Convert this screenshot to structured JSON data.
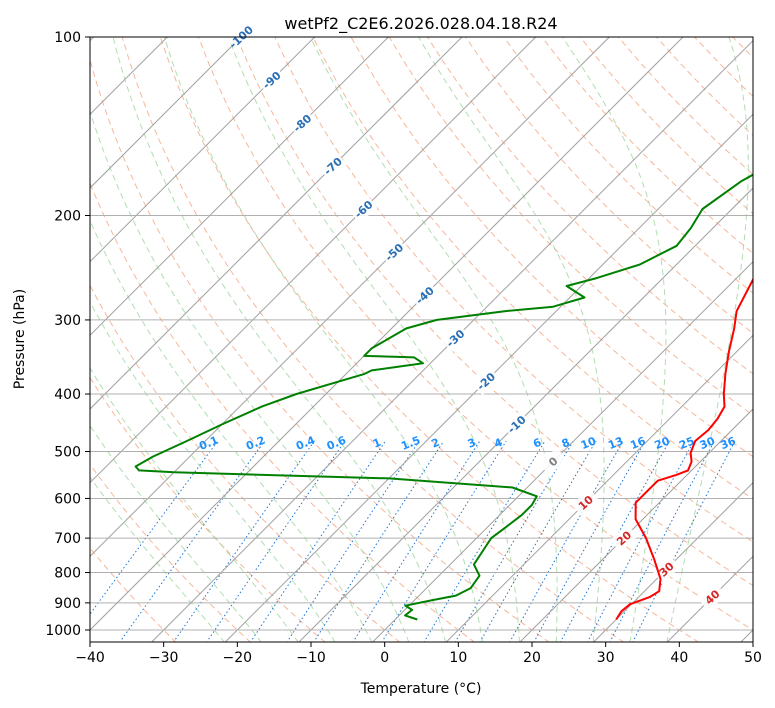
{
  "chart_data": {
    "type": "line",
    "chart_kind": "skew-T log-P diagram",
    "title": "wetPf2_C2E6.2026.028.04.18.R24",
    "xlabel": "Temperature (°C)",
    "ylabel": "Pressure (hPa)",
    "xlim": [
      -40,
      50
    ],
    "ylim": [
      1050,
      100
    ],
    "x_ticks": [
      -40,
      -30,
      -20,
      -10,
      0,
      10,
      20,
      30,
      40,
      50
    ],
    "x_tick_labels": [
      "−40",
      "−30",
      "−20",
      "−10",
      "0",
      "10",
      "20",
      "30",
      "40",
      "50"
    ],
    "y_ticks": [
      100,
      200,
      300,
      400,
      500,
      600,
      700,
      800,
      900,
      1000
    ],
    "y_tick_labels": [
      "100",
      "200",
      "300",
      "400",
      "500",
      "600",
      "700",
      "800",
      "900",
      "1000"
    ],
    "grid": true,
    "isotherm_labels": [
      "-100",
      "-90",
      "-80",
      "-70",
      "-60",
      "-50",
      "-40",
      "-30",
      "-20",
      "-10",
      "0",
      "10",
      "20",
      "30",
      "40"
    ],
    "isotherm_values": [
      -100,
      -90,
      -80,
      -70,
      -60,
      -50,
      -40,
      -30,
      -20,
      -10,
      0,
      10,
      20,
      30,
      40
    ],
    "mixing_ratio_labels": [
      "0.1",
      "0.2",
      "0.4",
      "0.6",
      "1",
      "1.5",
      "2",
      "3",
      "4",
      "6",
      "8",
      "10",
      "13",
      "16",
      "20",
      "25",
      "30",
      "36"
    ],
    "mixing_ratio_values": [
      0.1,
      0.2,
      0.4,
      0.6,
      1,
      1.5,
      2,
      3,
      4,
      6,
      8,
      10,
      13,
      16,
      20,
      25,
      30,
      36
    ],
    "series": [
      {
        "name": "Temperature",
        "color": "#ff0000",
        "points": [
          [
            30,
            960
          ],
          [
            29.6,
            930
          ],
          [
            29.8,
            905
          ],
          [
            31.5,
            880
          ],
          [
            32,
            860
          ],
          [
            30.5,
            820
          ],
          [
            27,
            760
          ],
          [
            23,
            700
          ],
          [
            19,
            650
          ],
          [
            16.8,
            610
          ],
          [
            16.8,
            580
          ],
          [
            16.8,
            560
          ],
          [
            18.5,
            548
          ],
          [
            19.5,
            538
          ],
          [
            18.8,
            520
          ],
          [
            17.5,
            503
          ],
          [
            16.5,
            480
          ],
          [
            16.8,
            460
          ],
          [
            16.5,
            440
          ],
          [
            15.8,
            420
          ],
          [
            14,
            400
          ],
          [
            11.5,
            370
          ],
          [
            9,
            340
          ],
          [
            6.5,
            310
          ],
          [
            4.5,
            290
          ],
          [
            2,
            250
          ],
          [
            -0.5,
            210
          ],
          [
            -3,
            185
          ],
          [
            -7,
            160
          ],
          [
            -10,
            145
          ],
          [
            -12,
            130
          ],
          [
            -12.5,
            122
          ],
          [
            -11,
            115
          ],
          [
            -8,
            108
          ],
          [
            -5.5,
            103
          ],
          [
            -4.5,
            100
          ]
        ]
      },
      {
        "name": "Dew point",
        "color": "#008000",
        "points": [
          [
            3,
            960
          ],
          [
            0.8,
            945
          ],
          [
            1,
            925
          ],
          [
            -0.5,
            910
          ],
          [
            2.5,
            890
          ],
          [
            5,
            875
          ],
          [
            6,
            850
          ],
          [
            5.5,
            810
          ],
          [
            3.2,
            775
          ],
          [
            2.5,
            730
          ],
          [
            2,
            700
          ],
          [
            2.5,
            670
          ],
          [
            3,
            640
          ],
          [
            3,
            615
          ],
          [
            2.5,
            595
          ],
          [
            -2,
            575
          ],
          [
            -20,
            555
          ],
          [
            -50,
            542
          ],
          [
            -55,
            538
          ],
          [
            -56,
            530
          ],
          [
            -55,
            510
          ],
          [
            -52.5,
            480
          ],
          [
            -50,
            450
          ],
          [
            -47,
            420
          ],
          [
            -44,
            400
          ],
          [
            -37.5,
            370
          ],
          [
            -37,
            365
          ],
          [
            -31,
            355
          ],
          [
            -33,
            347
          ],
          [
            -40,
            345
          ],
          [
            -40,
            335
          ],
          [
            -38,
            310
          ],
          [
            -35,
            300
          ],
          [
            -27,
            290
          ],
          [
            -21,
            285
          ],
          [
            -18,
            275
          ],
          [
            -22,
            263
          ],
          [
            -19,
            255
          ],
          [
            -15,
            242
          ],
          [
            -12.5,
            225
          ],
          [
            -13,
            210
          ],
          [
            -14,
            195
          ],
          [
            -12.5,
            175
          ],
          [
            -10,
            160
          ],
          [
            -9.5,
            145
          ],
          [
            -10,
            130
          ],
          [
            -9,
            120
          ],
          [
            -8,
            110
          ],
          [
            -6,
            103
          ],
          [
            -5,
            100
          ]
        ]
      }
    ]
  }
}
